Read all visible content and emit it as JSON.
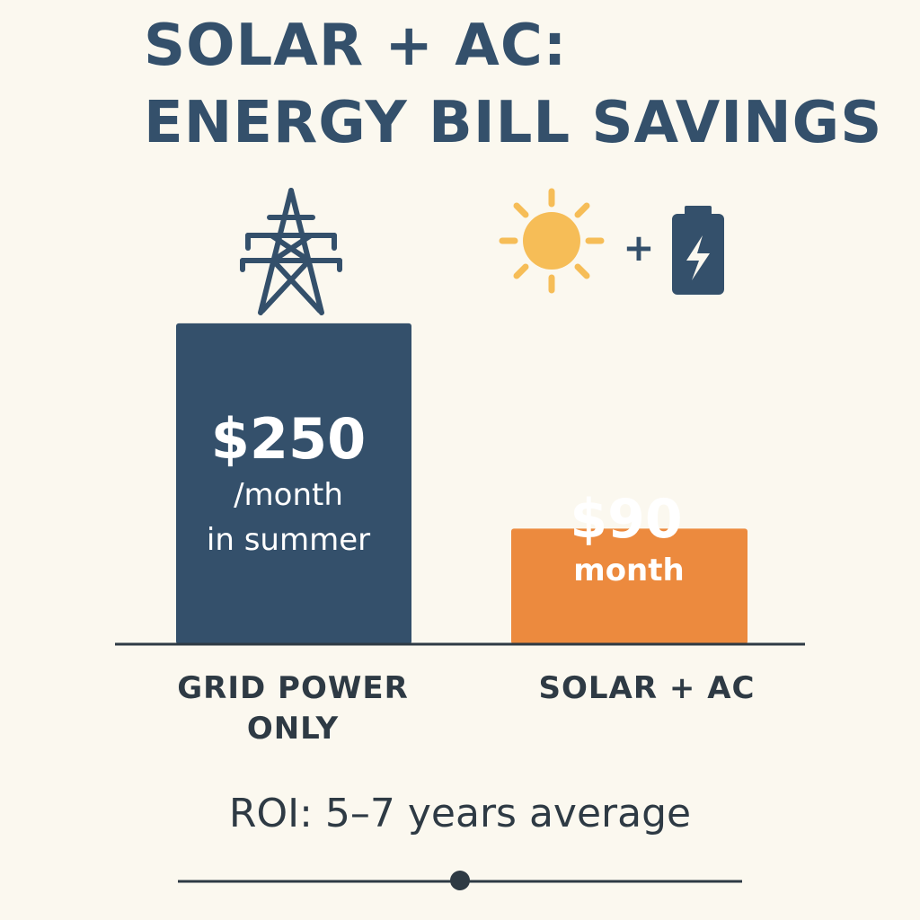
{
  "title": {
    "line1": "SOLAR + AC:",
    "line2": "ENERGY BILL SAVINGS"
  },
  "icons": {
    "grid": "transmission-tower-icon",
    "solar": "sun-icon",
    "plus": "+",
    "battery": "battery-bolt-icon"
  },
  "chart_data": {
    "type": "bar",
    "title": "SOLAR + AC: ENERGY BILL SAVINGS",
    "categories": [
      "GRID POWER ONLY",
      "SOLAR + AC"
    ],
    "values": [
      250,
      90
    ],
    "unit": "$/month",
    "ylim": [
      0,
      280
    ],
    "colors": [
      "#34506b",
      "#ec8a3e"
    ],
    "data_labels": [
      {
        "amount": "$250",
        "line2": "/month",
        "line3": "in summer"
      },
      {
        "amount": "$90",
        "line2": "month"
      }
    ],
    "xlabel": "",
    "ylabel": ""
  },
  "labels": {
    "grid": [
      "GRID POWER",
      "ONLY"
    ],
    "solar": [
      "SOLAR + AC"
    ]
  },
  "footer": {
    "roi": "ROI: 5–7 years average"
  },
  "colors": {
    "navy": "#34506b",
    "orange": "#ec8a3e",
    "sun": "#f6bd57",
    "text": "#2e3a44",
    "background": "#fbf8ef"
  }
}
